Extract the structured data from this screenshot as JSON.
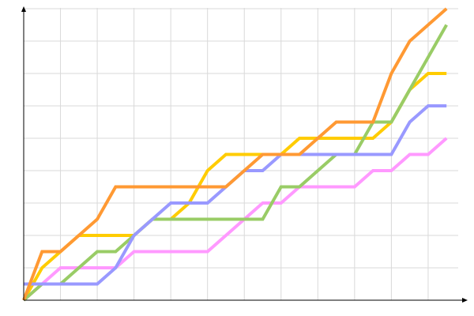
{
  "chart_data": {
    "type": "line",
    "title": "",
    "xlabel": "",
    "ylabel": "",
    "x": [
      0,
      1,
      2,
      3,
      4,
      5,
      6,
      7,
      8,
      9,
      10,
      11,
      12,
      13,
      14,
      15,
      16,
      17,
      18,
      19,
      20,
      21,
      22,
      23
    ],
    "xlim": [
      0,
      24
    ],
    "ylim": [
      0,
      18
    ],
    "grid": true,
    "x_grid_step": 2,
    "y_grid_step": 2,
    "legend": "none",
    "series": [
      {
        "color": "#FF99FF",
        "values": [
          0,
          1,
          2,
          2,
          2,
          2,
          3,
          3,
          3,
          3,
          3,
          4,
          5,
          6,
          6,
          7,
          7,
          7,
          7,
          8,
          8,
          9,
          9,
          10
        ]
      },
      {
        "color": "#FFCC00",
        "values": [
          0,
          2,
          3,
          4,
          4,
          4,
          4,
          5,
          5,
          6,
          8,
          9,
          9,
          9,
          9,
          10,
          10,
          10,
          10,
          10,
          11,
          13,
          14,
          14
        ]
      },
      {
        "color": "#99CC66",
        "values": [
          0,
          1,
          1,
          2,
          3,
          3,
          4,
          5,
          5,
          5,
          5,
          5,
          5,
          5,
          7,
          7,
          8,
          9,
          9,
          11,
          11,
          13,
          15,
          17
        ]
      },
      {
        "color": "#9999FF",
        "values": [
          1,
          1,
          1,
          1,
          1,
          2,
          4,
          5,
          6,
          6,
          6,
          7,
          8,
          8,
          9,
          9,
          9,
          9,
          9,
          9,
          9,
          11,
          12,
          12
        ]
      },
      {
        "color": "#FF9933",
        "values": [
          0,
          3,
          3,
          4,
          5,
          7,
          7,
          7,
          7,
          7,
          7,
          7,
          8,
          9,
          9,
          9,
          10,
          11,
          11,
          11,
          14,
          16,
          17,
          18
        ]
      }
    ]
  }
}
